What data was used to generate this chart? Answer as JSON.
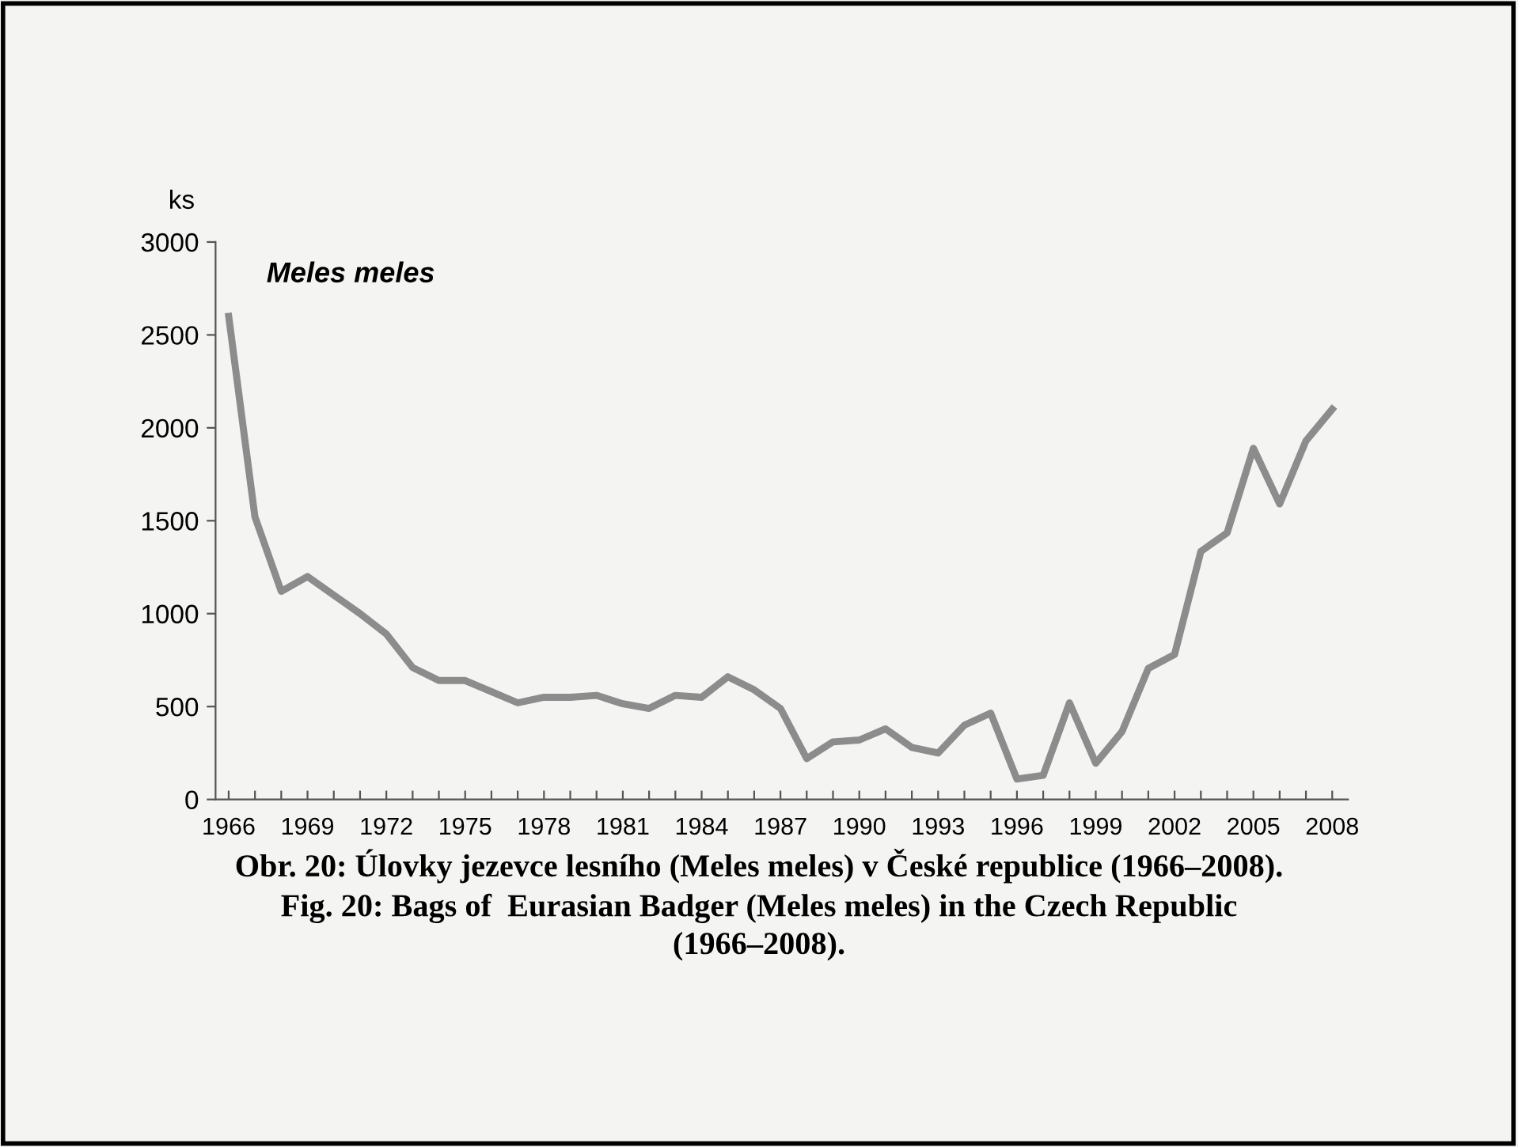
{
  "chart_data": {
    "type": "line",
    "ylabel": "ks",
    "annotations": [
      "Meles meles",
      "Obr. 20: Úlovky jezevce lesního (Meles meles) v České republice (1966–2008).",
      "Fig. 20: Bags of  Eurasian Badger (Meles meles) in the Czech Republic",
      "(1966–2008)."
    ],
    "x": [
      1966,
      1967,
      1968,
      1969,
      1970,
      1971,
      1972,
      1973,
      1974,
      1975,
      1976,
      1977,
      1978,
      1979,
      1980,
      1981,
      1982,
      1983,
      1984,
      1985,
      1986,
      1987,
      1988,
      1989,
      1990,
      1991,
      1992,
      1993,
      1994,
      1995,
      1996,
      1997,
      1998,
      1999,
      2000,
      2001,
      2002,
      2003,
      2004,
      2005,
      2006,
      2007,
      2008
    ],
    "series": [
      {
        "color": "#8c8c8c",
        "values": [
          2600,
          1520,
          1120,
          1200,
          1100,
          1000,
          890,
          710,
          640,
          640,
          580,
          520,
          550,
          550,
          560,
          515,
          490,
          560,
          550,
          660,
          590,
          490,
          220,
          310,
          320,
          380,
          280,
          250,
          400,
          465,
          110,
          130,
          520,
          195,
          365,
          705,
          780,
          1335,
          1435,
          1890,
          1590,
          1930,
          2100
        ]
      }
    ],
    "xlim": [
      1965.5,
      2008.6
    ],
    "xticks": [
      1966,
      {
        "value": 1967,
        "label": null
      },
      {
        "value": 1968,
        "label": null
      },
      1969,
      {
        "value": 1970,
        "label": null
      },
      {
        "value": 1971,
        "label": null
      },
      1972,
      {
        "value": 1973,
        "label": null
      },
      {
        "value": 1974,
        "label": null
      },
      1975,
      {
        "value": 1976,
        "label": null
      },
      {
        "value": 1977,
        "label": null
      },
      1978,
      {
        "value": 1979,
        "label": null
      },
      {
        "value": 1980,
        "label": null
      },
      1981,
      {
        "value": 1982,
        "label": null
      },
      {
        "value": 1983,
        "label": null
      },
      1984,
      {
        "value": 1985,
        "label": null
      },
      {
        "value": 1986,
        "label": null
      },
      1987,
      {
        "value": 1988,
        "label": null
      },
      {
        "value": 1989,
        "label": null
      },
      1990,
      {
        "value": 1991,
        "label": null
      },
      {
        "value": 1992,
        "label": null
      },
      1993,
      {
        "value": 1994,
        "label": null
      },
      {
        "value": 1995,
        "label": null
      },
      1996,
      {
        "value": 1997,
        "label": null
      },
      {
        "value": 1998,
        "label": null
      },
      1999,
      {
        "value": 2000,
        "label": null
      },
      {
        "value": 2001,
        "label": null
      },
      2002,
      {
        "value": 2003,
        "label": null
      },
      {
        "value": 2004,
        "label": null
      },
      2005,
      {
        "value": 2006,
        "label": null
      },
      {
        "value": 2007,
        "label": null
      },
      2008
    ],
    "ylim": [
      0,
      3000
    ],
    "yticks": [
      0,
      500,
      1000,
      1500,
      2000,
      2500,
      3000
    ],
    "grid": false,
    "marker": "none",
    "line_style": "solid"
  }
}
